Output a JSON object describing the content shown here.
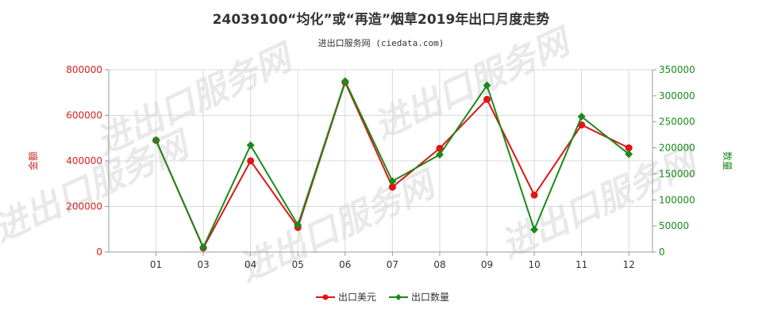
{
  "title": "24039100“均化”或“再造”烟草2019年出口月度走势",
  "subtitle": "进出口服务网 (ciedata.com)",
  "watermark": "进出口服务网",
  "chart_data": {
    "type": "line",
    "categories": [
      "01",
      "03",
      "04",
      "05",
      "06",
      "07",
      "08",
      "09",
      "10",
      "11",
      "12"
    ],
    "series": [
      {
        "name": "出口美元",
        "axis": "left",
        "color": "#e01515",
        "values": [
          490000,
          18000,
          400000,
          108000,
          745000,
          285000,
          455000,
          670000,
          250000,
          558000,
          457000
        ]
      },
      {
        "name": "出口数量",
        "axis": "right",
        "color": "#1a8a1a",
        "values": [
          215000,
          9000,
          205000,
          52000,
          328000,
          136000,
          187000,
          320000,
          43000,
          260000,
          188000
        ]
      }
    ],
    "y_left": {
      "label": "金额",
      "min": 0,
      "max": 800000,
      "ticks": [
        "0",
        "200000",
        "400000",
        "600000",
        "800000"
      ]
    },
    "y_right": {
      "label": "数量",
      "min": 0,
      "max": 350000,
      "ticks": [
        "0",
        "50000",
        "100000",
        "150000",
        "200000",
        "250000",
        "300000",
        "350000"
      ]
    },
    "grid": true,
    "legend_position": "bottom-center"
  }
}
